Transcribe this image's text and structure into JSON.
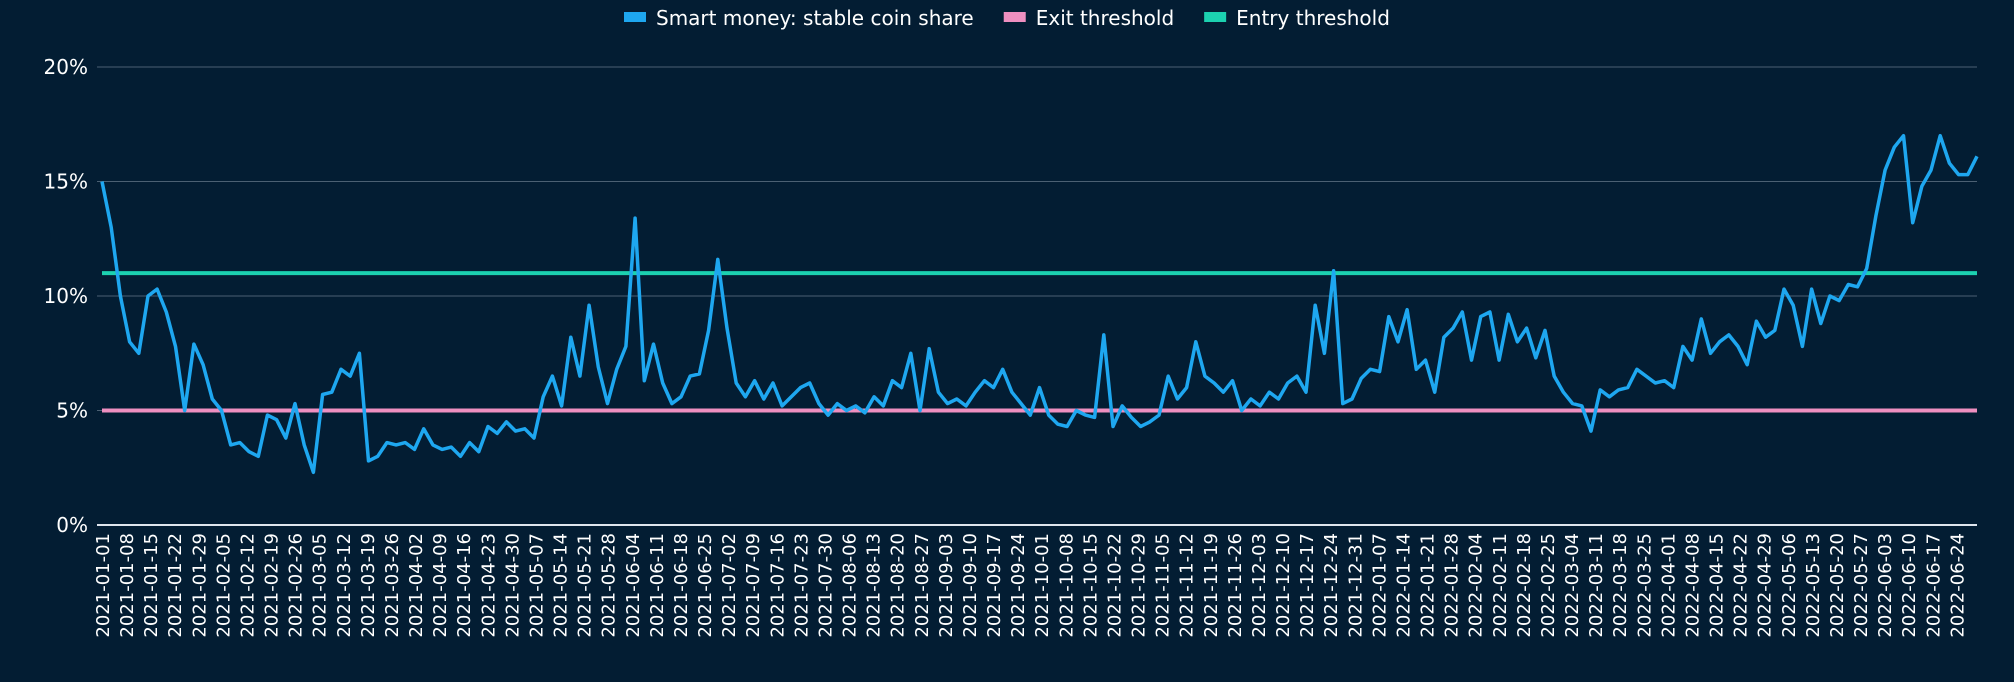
{
  "chart_data": {
    "type": "line",
    "title": "",
    "xlabel": "",
    "ylabel": "",
    "ylim": [
      0,
      20
    ],
    "y_ticks": [
      "0%",
      "5%",
      "10%",
      "15%",
      "20%"
    ],
    "y_tick_values": [
      0,
      5,
      10,
      15,
      20
    ],
    "grid": true,
    "legend_position": "top-center",
    "x_start": "2021-01-01",
    "x_end": "2022-06-30",
    "x_ticks": [
      "2021-01-01",
      "2021-01-08",
      "2021-01-15",
      "2021-01-22",
      "2021-01-29",
      "2021-02-05",
      "2021-02-12",
      "2021-02-19",
      "2021-02-26",
      "2021-03-05",
      "2021-03-12",
      "2021-03-19",
      "2021-03-26",
      "2021-04-02",
      "2021-04-09",
      "2021-04-16",
      "2021-04-23",
      "2021-04-30",
      "2021-05-07",
      "2021-05-14",
      "2021-05-21",
      "2021-05-28",
      "2021-06-04",
      "2021-06-11",
      "2021-06-18",
      "2021-06-25",
      "2021-07-02",
      "2021-07-09",
      "2021-07-16",
      "2021-07-23",
      "2021-07-30",
      "2021-08-06",
      "2021-08-13",
      "2021-08-20",
      "2021-08-27",
      "2021-09-03",
      "2021-09-10",
      "2021-09-17",
      "2021-09-24",
      "2021-10-01",
      "2021-10-08",
      "2021-10-15",
      "2021-10-22",
      "2021-10-29",
      "2021-11-05",
      "2021-11-12",
      "2021-11-19",
      "2021-11-26",
      "2021-12-03",
      "2021-12-10",
      "2021-12-17",
      "2021-12-24",
      "2021-12-31",
      "2022-01-07",
      "2022-01-14",
      "2022-01-21",
      "2022-01-28",
      "2022-02-04",
      "2022-02-11",
      "2022-02-18",
      "2022-02-25",
      "2022-03-04",
      "2022-03-11",
      "2022-03-18",
      "2022-03-25",
      "2022-04-01",
      "2022-04-08",
      "2022-04-15",
      "2022-04-22",
      "2022-04-29",
      "2022-05-06",
      "2022-05-13",
      "2022-05-20",
      "2022-05-27",
      "2022-06-03",
      "2022-06-10",
      "2022-06-17",
      "2022-06-24"
    ],
    "series": [
      {
        "name": "Smart money: stable coin share",
        "color": "#1ea7f0",
        "values": [
          15,
          13,
          10,
          8,
          7.5,
          10,
          10.3,
          9.3,
          7.8,
          5.0,
          7.9,
          7,
          5.5,
          5,
          3.5,
          3.6,
          3.2,
          3.0,
          4.8,
          4.6,
          3.8,
          5.3,
          3.5,
          2.3,
          5.7,
          5.8,
          6.8,
          6.5,
          7.5,
          2.8,
          3.0,
          3.6,
          3.5,
          3.6,
          3.3,
          4.2,
          3.5,
          3.3,
          3.4,
          3.0,
          3.6,
          3.2,
          4.3,
          4.0,
          4.5,
          4.1,
          4.2,
          3.8,
          5.6,
          6.5,
          5.2,
          8.2,
          6.5,
          9.6,
          6.9,
          5.3,
          6.8,
          7.8,
          13.4,
          6.3,
          7.9,
          6.2,
          5.3,
          5.6,
          6.5,
          6.6,
          8.5,
          11.6,
          8.6,
          6.2,
          5.6,
          6.3,
          5.5,
          6.2,
          5.2,
          5.6,
          6.0,
          6.2,
          5.3,
          4.8,
          5.3,
          5.0,
          5.2,
          4.9,
          5.6,
          5.2,
          6.3,
          6.0,
          7.5,
          5.0,
          7.7,
          5.8,
          5.3,
          5.5,
          5.2,
          5.8,
          6.3,
          6.0,
          6.8,
          5.8,
          5.3,
          4.8,
          6.0,
          4.8,
          4.4,
          4.3,
          5.0,
          4.8,
          4.7,
          8.3,
          4.3,
          5.2,
          4.7,
          4.3,
          4.5,
          4.8,
          6.5,
          5.5,
          6.0,
          8.0,
          6.5,
          6.2,
          5.8,
          6.3,
          5.0,
          5.5,
          5.2,
          5.8,
          5.5,
          6.2,
          6.5,
          5.8,
          9.6,
          7.5,
          11.1,
          5.3,
          5.5,
          6.4,
          6.8,
          6.7,
          9.1,
          8.0,
          9.4,
          6.8,
          7.2,
          5.8,
          8.2,
          8.6,
          9.3,
          7.2,
          9.1,
          9.3,
          7.2,
          9.2,
          8.0,
          8.6,
          7.3,
          8.5,
          6.5,
          5.8,
          5.3,
          5.2,
          4.1,
          5.9,
          5.6,
          5.9,
          6.0,
          6.8,
          6.5,
          6.2,
          6.3,
          6.0,
          7.8,
          7.2,
          9.0,
          7.5,
          8.0,
          8.3,
          7.8,
          7.0,
          8.9,
          8.2,
          8.5,
          10.3,
          9.6,
          7.8,
          10.3,
          8.8,
          10.0,
          9.8,
          10.5,
          10.4,
          11.2,
          13.5,
          15.5,
          16.5,
          17.0,
          13.2,
          14.8,
          15.5,
          17.0,
          15.8,
          15.3,
          15.3,
          16.1
        ]
      },
      {
        "name": "Exit threshold",
        "color": "#ee8fc0",
        "constant": 5
      },
      {
        "name": "Entry threshold",
        "color": "#1cd1b0",
        "constant": 11
      }
    ]
  }
}
